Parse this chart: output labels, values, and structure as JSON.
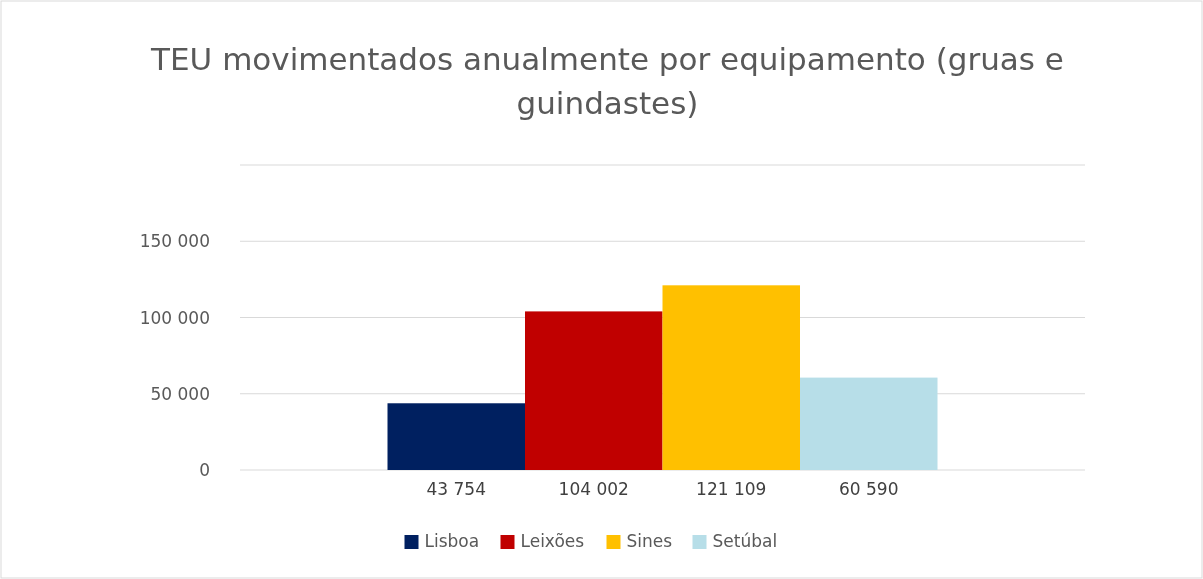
{
  "chart_data": {
    "type": "bar",
    "title": "TEU movimentados anualmente por equipamento (gruas e guindastes)",
    "categories": [
      null
    ],
    "series": [
      {
        "name": "Lisboa",
        "color": "#002060",
        "values": [
          43754
        ],
        "value_labels": [
          "43 754"
        ]
      },
      {
        "name": "Leixões",
        "color": "#c00000",
        "values": [
          104002
        ],
        "value_labels": [
          "104 002"
        ]
      },
      {
        "name": "Sines",
        "color": "#ffc000",
        "values": [
          121109
        ],
        "value_labels": [
          "121 109"
        ]
      },
      {
        "name": "Setúbal",
        "color": "#b7dee8",
        "values": [
          60590
        ],
        "value_labels": [
          "60 590"
        ]
      }
    ],
    "ylim": [
      0,
      200000
    ],
    "yticks": [
      0,
      {
        "value": 50000,
        "label": "50 000"
      },
      {
        "value": 100000,
        "label": "100 000"
      },
      {
        "value": 150000,
        "label": "150 000"
      },
      {
        "value": 200000,
        "label": null
      }
    ],
    "grid": "y",
    "legend": "bottom"
  }
}
